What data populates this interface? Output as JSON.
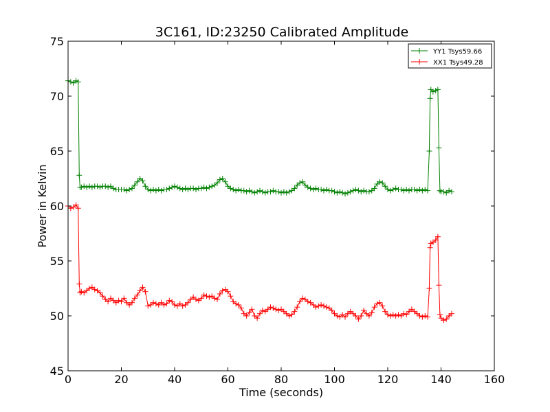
{
  "chart_data": {
    "type": "line",
    "title": "3C161, ID:23250 Calibrated Amplitude",
    "xlabel": "Time (seconds)",
    "ylabel": "Power in Kelvin",
    "xlim": [
      0,
      160
    ],
    "ylim": [
      45,
      75
    ],
    "xticks": [
      "0",
      "20",
      "40",
      "60",
      "80",
      "100",
      "120",
      "140",
      "160"
    ],
    "yticks": [
      "45",
      "50",
      "55",
      "60",
      "65",
      "70",
      "75"
    ],
    "grid": false,
    "legend_position": "top-right",
    "marker": "+",
    "series": [
      {
        "name": "YY1 Tsys59.66",
        "color": "#008000",
        "points": [
          [
            0,
            71.4
          ],
          [
            1,
            71.3
          ],
          [
            2,
            71.2
          ],
          [
            3,
            71.4
          ],
          [
            3.8,
            71.3
          ],
          [
            4.2,
            62.8
          ],
          [
            4.5,
            61.7
          ],
          [
            5,
            61.7
          ],
          [
            6,
            61.8
          ],
          [
            7,
            61.7
          ],
          [
            8,
            61.8
          ],
          [
            9,
            61.7
          ],
          [
            10,
            61.8
          ],
          [
            11,
            61.8
          ],
          [
            12,
            61.7
          ],
          [
            13,
            61.8
          ],
          [
            14,
            61.8
          ],
          [
            15,
            61.7
          ],
          [
            16,
            61.8
          ],
          [
            17,
            61.6
          ],
          [
            18,
            61.5
          ],
          [
            19,
            61.5
          ],
          [
            20,
            61.5
          ],
          [
            21,
            61.5
          ],
          [
            22,
            61.4
          ],
          [
            23,
            61.5
          ],
          [
            24,
            61.6
          ],
          [
            25,
            61.9
          ],
          [
            26,
            62.2
          ],
          [
            27,
            62.5
          ],
          [
            28,
            62.3
          ],
          [
            29,
            61.8
          ],
          [
            30,
            61.5
          ],
          [
            31,
            61.4
          ],
          [
            32,
            61.5
          ],
          [
            33,
            61.4
          ],
          [
            34,
            61.5
          ],
          [
            35,
            61.4
          ],
          [
            36,
            61.5
          ],
          [
            37,
            61.5
          ],
          [
            38,
            61.6
          ],
          [
            39,
            61.7
          ],
          [
            40,
            61.8
          ],
          [
            41,
            61.7
          ],
          [
            42,
            61.6
          ],
          [
            43,
            61.5
          ],
          [
            44,
            61.6
          ],
          [
            45,
            61.5
          ],
          [
            46,
            61.6
          ],
          [
            47,
            61.6
          ],
          [
            48,
            61.5
          ],
          [
            49,
            61.6
          ],
          [
            50,
            61.6
          ],
          [
            51,
            61.7
          ],
          [
            52,
            61.6
          ],
          [
            53,
            61.7
          ],
          [
            54,
            61.8
          ],
          [
            55,
            61.9
          ],
          [
            56,
            62.1
          ],
          [
            57,
            62.4
          ],
          [
            58,
            62.5
          ],
          [
            59,
            62.2
          ],
          [
            60,
            61.8
          ],
          [
            61,
            61.6
          ],
          [
            62,
            61.5
          ],
          [
            63,
            61.4
          ],
          [
            64,
            61.5
          ],
          [
            65,
            61.4
          ],
          [
            66,
            61.4
          ],
          [
            67,
            61.3
          ],
          [
            68,
            61.4
          ],
          [
            69,
            61.3
          ],
          [
            70,
            61.2
          ],
          [
            71,
            61.3
          ],
          [
            72,
            61.4
          ],
          [
            73,
            61.3
          ],
          [
            74,
            61.2
          ],
          [
            75,
            61.3
          ],
          [
            76,
            61.3
          ],
          [
            77,
            61.4
          ],
          [
            78,
            61.3
          ],
          [
            79,
            61.3
          ],
          [
            80,
            61.2
          ],
          [
            81,
            61.3
          ],
          [
            82,
            61.2
          ],
          [
            83,
            61.3
          ],
          [
            84,
            61.4
          ],
          [
            85,
            61.6
          ],
          [
            86,
            61.9
          ],
          [
            87,
            62.1
          ],
          [
            88,
            62.2
          ],
          [
            89,
            61.9
          ],
          [
            90,
            61.7
          ],
          [
            91,
            61.6
          ],
          [
            92,
            61.5
          ],
          [
            93,
            61.6
          ],
          [
            94,
            61.5
          ],
          [
            95,
            61.5
          ],
          [
            96,
            61.4
          ],
          [
            97,
            61.5
          ],
          [
            98,
            61.4
          ],
          [
            99,
            61.4
          ],
          [
            100,
            61.3
          ],
          [
            101,
            61.2
          ],
          [
            102,
            61.3
          ],
          [
            103,
            61.2
          ],
          [
            104,
            61.1
          ],
          [
            105,
            61.2
          ],
          [
            106,
            61.3
          ],
          [
            107,
            61.4
          ],
          [
            108,
            61.5
          ],
          [
            109,
            61.4
          ],
          [
            110,
            61.3
          ],
          [
            111,
            61.4
          ],
          [
            112,
            61.3
          ],
          [
            113,
            61.3
          ],
          [
            114,
            61.4
          ],
          [
            115,
            61.6
          ],
          [
            116,
            62.0
          ],
          [
            117,
            62.2
          ],
          [
            118,
            62.1
          ],
          [
            119,
            61.8
          ],
          [
            120,
            61.5
          ],
          [
            121,
            61.4
          ],
          [
            122,
            61.5
          ],
          [
            123,
            61.6
          ],
          [
            124,
            61.5
          ],
          [
            125,
            61.5
          ],
          [
            126,
            61.4
          ],
          [
            127,
            61.5
          ],
          [
            128,
            61.4
          ],
          [
            129,
            61.5
          ],
          [
            130,
            61.5
          ],
          [
            131,
            61.4
          ],
          [
            132,
            61.5
          ],
          [
            133,
            61.4
          ],
          [
            134,
            61.5
          ],
          [
            135,
            61.4
          ],
          [
            135.6,
            65.0
          ],
          [
            135.9,
            69.8
          ],
          [
            136.2,
            70.6
          ],
          [
            137,
            70.4
          ],
          [
            138,
            70.5
          ],
          [
            138.8,
            70.6
          ],
          [
            139.2,
            65.3
          ],
          [
            139.6,
            61.4
          ],
          [
            140,
            61.3
          ],
          [
            141,
            61.3
          ],
          [
            142,
            61.2
          ],
          [
            143,
            61.4
          ],
          [
            144,
            61.3
          ]
        ]
      },
      {
        "name": "XX1 Tsys49.28",
        "color": "#ff0000",
        "points": [
          [
            0,
            60.0
          ],
          [
            1,
            59.8
          ],
          [
            2,
            59.9
          ],
          [
            3,
            60.1
          ],
          [
            3.8,
            59.8
          ],
          [
            4.2,
            52.9
          ],
          [
            4.5,
            52.1
          ],
          [
            5,
            52.2
          ],
          [
            6,
            52.1
          ],
          [
            7,
            52.3
          ],
          [
            8,
            52.5
          ],
          [
            9,
            52.6
          ],
          [
            10,
            52.4
          ],
          [
            11,
            52.3
          ],
          [
            12,
            52.1
          ],
          [
            13,
            51.8
          ],
          [
            14,
            51.5
          ],
          [
            15,
            51.3
          ],
          [
            16,
            51.6
          ],
          [
            17,
            51.4
          ],
          [
            18,
            51.2
          ],
          [
            19,
            51.4
          ],
          [
            20,
            51.3
          ],
          [
            21,
            51.6
          ],
          [
            22,
            51.2
          ],
          [
            23,
            51.0
          ],
          [
            24,
            51.2
          ],
          [
            25,
            51.6
          ],
          [
            26,
            51.9
          ],
          [
            27,
            52.3
          ],
          [
            28,
            52.6
          ],
          [
            29,
            52.2
          ],
          [
            30,
            50.9
          ],
          [
            31,
            51.0
          ],
          [
            32,
            51.2
          ],
          [
            33,
            51.1
          ],
          [
            34,
            51.0
          ],
          [
            35,
            51.2
          ],
          [
            36,
            51.0
          ],
          [
            37,
            51.1
          ],
          [
            38,
            51.4
          ],
          [
            39,
            51.3
          ],
          [
            40,
            51.0
          ],
          [
            41,
            50.9
          ],
          [
            42,
            51.1
          ],
          [
            43,
            50.9
          ],
          [
            44,
            51.0
          ],
          [
            45,
            51.2
          ],
          [
            46,
            51.5
          ],
          [
            47,
            51.7
          ],
          [
            48,
            51.5
          ],
          [
            49,
            51.4
          ],
          [
            50,
            51.6
          ],
          [
            51,
            51.9
          ],
          [
            52,
            51.8
          ],
          [
            53,
            51.7
          ],
          [
            54,
            51.8
          ],
          [
            55,
            51.6
          ],
          [
            56,
            51.5
          ],
          [
            57,
            52.0
          ],
          [
            58,
            52.3
          ],
          [
            59,
            52.4
          ],
          [
            60,
            52.2
          ],
          [
            61,
            51.8
          ],
          [
            62,
            51.3
          ],
          [
            63,
            51.1
          ],
          [
            64,
            51.0
          ],
          [
            65,
            50.7
          ],
          [
            66,
            50.2
          ],
          [
            67,
            50.0
          ],
          [
            68,
            50.3
          ],
          [
            69,
            50.6
          ],
          [
            70,
            50.0
          ],
          [
            71,
            49.8
          ],
          [
            72,
            50.2
          ],
          [
            73,
            50.5
          ],
          [
            74,
            50.4
          ],
          [
            75,
            50.6
          ],
          [
            76,
            50.8
          ],
          [
            77,
            50.7
          ],
          [
            78,
            50.6
          ],
          [
            79,
            50.5
          ],
          [
            80,
            50.6
          ],
          [
            81,
            50.4
          ],
          [
            82,
            50.2
          ],
          [
            83,
            50.0
          ],
          [
            84,
            50.1
          ],
          [
            85,
            50.4
          ],
          [
            86,
            50.8
          ],
          [
            87,
            51.3
          ],
          [
            88,
            51.6
          ],
          [
            89,
            51.5
          ],
          [
            90,
            51.3
          ],
          [
            91,
            51.2
          ],
          [
            92,
            51.0
          ],
          [
            93,
            50.8
          ],
          [
            94,
            50.9
          ],
          [
            95,
            51.0
          ],
          [
            96,
            50.9
          ],
          [
            97,
            50.8
          ],
          [
            98,
            50.7
          ],
          [
            99,
            50.5
          ],
          [
            100,
            50.2
          ],
          [
            101,
            50.0
          ],
          [
            102,
            49.9
          ],
          [
            103,
            50.1
          ],
          [
            104,
            49.9
          ],
          [
            105,
            50.2
          ],
          [
            106,
            50.4
          ],
          [
            107,
            50.2
          ],
          [
            108,
            50.0
          ],
          [
            109,
            49.7
          ],
          [
            110,
            50.0
          ],
          [
            111,
            50.5
          ],
          [
            112,
            50.2
          ],
          [
            113,
            50.0
          ],
          [
            114,
            50.3
          ],
          [
            115,
            50.8
          ],
          [
            116,
            51.1
          ],
          [
            117,
            51.2
          ],
          [
            118,
            50.9
          ],
          [
            119,
            50.4
          ],
          [
            120,
            50.1
          ],
          [
            121,
            50.0
          ],
          [
            122,
            50.1
          ],
          [
            123,
            50.0
          ],
          [
            124,
            50.1
          ],
          [
            125,
            50.0
          ],
          [
            126,
            50.2
          ],
          [
            127,
            50.1
          ],
          [
            128,
            50.4
          ],
          [
            129,
            50.6
          ],
          [
            130,
            50.4
          ],
          [
            131,
            50.2
          ],
          [
            132,
            50.0
          ],
          [
            133,
            49.9
          ],
          [
            134,
            50.0
          ],
          [
            135,
            49.9
          ],
          [
            135.6,
            52.5
          ],
          [
            135.9,
            56.2
          ],
          [
            136.2,
            56.6
          ],
          [
            137,
            56.7
          ],
          [
            138,
            56.9
          ],
          [
            138.8,
            57.2
          ],
          [
            139.2,
            52.8
          ],
          [
            139.6,
            50.1
          ],
          [
            140,
            49.8
          ],
          [
            141,
            49.6
          ],
          [
            142,
            49.7
          ],
          [
            143,
            50.0
          ],
          [
            144,
            50.2
          ]
        ]
      }
    ]
  }
}
